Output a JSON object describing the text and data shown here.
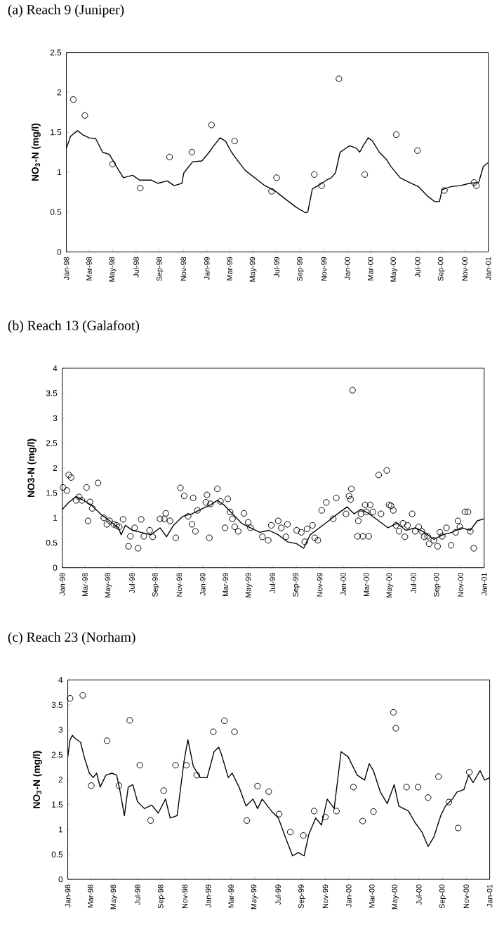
{
  "chart_data": [
    {
      "type": "line",
      "title": "(a) Reach 9 (Juniper)",
      "ylabel": "NO$_{3}$-N (mg/l)",
      "xlim": [
        "1998-01-01",
        "2001-01-01"
      ],
      "ylim": [
        0,
        2.5
      ],
      "yticks": [
        0,
        0.5,
        1,
        1.5,
        2,
        2.5
      ],
      "xticks": [
        {
          "value": "1998-01-01",
          "label": "Jan-98"
        },
        {
          "value": "1998-03-01",
          "label": "Mar-98"
        },
        {
          "value": "1998-05-01",
          "label": "May-98"
        },
        {
          "value": "1998-07-01",
          "label": "Jul-98"
        },
        {
          "value": "1998-09-01",
          "label": "Sep-98"
        },
        {
          "value": "1998-11-01",
          "label": "Nov-98"
        },
        {
          "value": "1999-01-01",
          "label": "Jan-99"
        },
        {
          "value": "1999-03-01",
          "label": "Mar-99"
        },
        {
          "value": "1999-05-01",
          "label": "May-99"
        },
        {
          "value": "1999-07-01",
          "label": "Jul-99"
        },
        {
          "value": "1999-09-01",
          "label": "Sep-99"
        },
        {
          "value": "1999-11-01",
          "label": "Nov-99"
        },
        {
          "value": "2000-01-01",
          "label": "Jan-00"
        },
        {
          "value": "2000-03-01",
          "label": "Mar-00"
        },
        {
          "value": "2000-05-01",
          "label": "May-00"
        },
        {
          "value": "2000-07-01",
          "label": "Jul-00"
        },
        {
          "value": "2000-09-01",
          "label": "Sep-00"
        },
        {
          "value": "2000-11-01",
          "label": "Nov-00"
        },
        {
          "value": "2001-01-01",
          "label": "Jan-01"
        }
      ],
      "series": [
        {
          "type": "line",
          "color": "#000000",
          "x": [
            "1998-01-01",
            "1998-01-12",
            "1998-01-30",
            "1998-02-12",
            "1998-03-01",
            "1998-03-18",
            "1998-04-05",
            "1998-04-23",
            "1998-05-11",
            "1998-05-29",
            "1998-06-22",
            "1998-07-10",
            "1998-08-09",
            "1998-08-27",
            "1998-09-20",
            "1998-10-08",
            "1998-10-28",
            "1998-11-02",
            "1998-11-25",
            "1998-12-19",
            "1999-01-07",
            "1999-01-19",
            "1999-02-04",
            "1999-02-18",
            "1999-03-06",
            "1999-03-24",
            "1999-04-11",
            "1999-05-05",
            "1999-05-29",
            "1999-06-28",
            "1999-07-22",
            "1999-08-21",
            "1999-09-14",
            "1999-09-20",
            "1999-10-02",
            "1999-10-20",
            "1999-11-08",
            "1999-11-20",
            "1999-12-01",
            "1999-12-13",
            "2000-01-07",
            "2000-01-24",
            "2000-02-02",
            "2000-02-11",
            "2000-02-24",
            "2000-03-06",
            "2000-03-24",
            "2000-04-11",
            "2000-04-23",
            "2000-05-17",
            "2000-06-10",
            "2000-07-03",
            "2000-07-27",
            "2000-08-15",
            "2000-08-27",
            "2000-09-03",
            "2000-09-27",
            "2000-10-20",
            "2000-11-14",
            "2000-12-07",
            "2000-12-19",
            "2001-01-01"
          ],
          "values": [
            1.3,
            1.45,
            1.52,
            1.47,
            1.43,
            1.42,
            1.25,
            1.22,
            1.07,
            0.93,
            0.96,
            0.9,
            0.9,
            0.86,
            0.89,
            0.83,
            0.86,
            0.99,
            1.13,
            1.14,
            1.25,
            1.33,
            1.43,
            1.39,
            1.25,
            1.13,
            1.02,
            0.93,
            0.84,
            0.76,
            0.67,
            0.56,
            0.49,
            0.5,
            0.79,
            0.84,
            0.9,
            0.93,
            0.99,
            1.25,
            1.33,
            1.3,
            1.25,
            1.33,
            1.43,
            1.39,
            1.25,
            1.16,
            1.07,
            0.93,
            0.87,
            0.82,
            0.7,
            0.63,
            0.63,
            0.78,
            0.82,
            0.83,
            0.86,
            0.87,
            1.07,
            1.12
          ]
        },
        {
          "type": "scatter",
          "marker": "circle",
          "color": "#000000",
          "x": [
            "1998-01-19",
            "1998-02-18",
            "1998-05-01",
            "1998-07-12",
            "1998-09-26",
            "1998-11-23",
            "1999-01-13",
            "1999-03-14",
            "1999-06-18",
            "1999-07-01",
            "1999-10-07",
            "1999-10-26",
            "1999-12-10",
            "2000-02-15",
            "2000-05-07",
            "2000-07-01",
            "2000-09-09",
            "2000-11-25",
            "2000-12-01"
          ],
          "values": [
            1.91,
            1.71,
            1.1,
            0.8,
            1.19,
            1.25,
            1.59,
            1.39,
            0.76,
            0.93,
            0.97,
            0.83,
            2.17,
            0.97,
            1.47,
            1.27,
            0.77,
            0.87,
            0.83
          ]
        }
      ]
    },
    {
      "type": "line",
      "title": "(b) Reach 13 (Galafoot)",
      "ylabel": "NO3-N (mg/l)",
      "xlim": [
        "1998-01-01",
        "2001-01-01"
      ],
      "ylim": [
        0,
        4
      ],
      "yticks": [
        0,
        0.5,
        1,
        1.5,
        2,
        2.5,
        3,
        3.5,
        4
      ],
      "xticks": [
        {
          "value": "1998-01-01",
          "label": "Jan-98"
        },
        {
          "value": "1998-03-01",
          "label": "Mar-98"
        },
        {
          "value": "1998-05-01",
          "label": "May-98"
        },
        {
          "value": "1998-07-01",
          "label": "Jul-98"
        },
        {
          "value": "1998-09-01",
          "label": "Sep-98"
        },
        {
          "value": "1998-11-01",
          "label": "Nov-98"
        },
        {
          "value": "1999-01-01",
          "label": "Jan-99"
        },
        {
          "value": "1999-03-01",
          "label": "Mar-99"
        },
        {
          "value": "1999-05-01",
          "label": "May-99"
        },
        {
          "value": "1999-07-01",
          "label": "Jul-99"
        },
        {
          "value": "1999-09-01",
          "label": "Sep-99"
        },
        {
          "value": "1999-11-01",
          "label": "Nov-99"
        },
        {
          "value": "2000-01-01",
          "label": "Jan-00"
        },
        {
          "value": "2000-03-01",
          "label": "Mar-00"
        },
        {
          "value": "2000-05-01",
          "label": "May-00"
        },
        {
          "value": "2000-07-01",
          "label": "Jul-00"
        },
        {
          "value": "2000-09-01",
          "label": "Sep-00"
        },
        {
          "value": "2000-11-01",
          "label": "Nov-00"
        },
        {
          "value": "2001-01-01",
          "label": "Jan-01"
        }
      ],
      "series": [
        {
          "type": "line",
          "color": "#000000",
          "x": [
            "1998-01-01",
            "1998-01-18",
            "1998-02-06",
            "1998-02-23",
            "1998-03-17",
            "1998-04-10",
            "1998-05-04",
            "1998-05-27",
            "1998-06-03",
            "1998-06-14",
            "1998-07-02",
            "1998-07-25",
            "1998-08-19",
            "1998-09-12",
            "1998-09-29",
            "1998-10-17",
            "1998-11-10",
            "1998-12-04",
            "1998-12-27",
            "1999-01-21",
            "1999-02-08",
            "1999-02-25",
            "1999-03-19",
            "1999-04-12",
            "1999-05-05",
            "1999-05-29",
            "1999-06-22",
            "1999-07-16",
            "1999-08-09",
            "1999-09-02",
            "1999-09-20",
            "1999-10-07",
            "1999-10-31",
            "1999-11-24",
            "1999-12-17",
            "2000-01-11",
            "2000-01-29",
            "2000-02-16",
            "2000-03-09",
            "2000-04-02",
            "2000-04-26",
            "2000-05-19",
            "2000-06-12",
            "2000-07-06",
            "2000-07-30",
            "2000-08-23",
            "2000-09-16",
            "2000-10-09",
            "2000-11-03",
            "2000-11-26",
            "2000-12-14",
            "2001-01-01"
          ],
          "values": [
            1.17,
            1.31,
            1.43,
            1.36,
            1.26,
            1.08,
            0.94,
            0.8,
            0.66,
            0.85,
            0.75,
            0.71,
            0.66,
            0.8,
            0.62,
            0.85,
            1.03,
            1.08,
            1.17,
            1.26,
            1.35,
            1.26,
            1.08,
            0.89,
            0.8,
            0.71,
            0.75,
            0.66,
            0.52,
            0.48,
            0.39,
            0.66,
            0.8,
            0.94,
            1.08,
            1.22,
            1.08,
            1.17,
            1.08,
            0.94,
            0.8,
            0.89,
            0.75,
            0.8,
            0.71,
            0.57,
            0.66,
            0.71,
            0.8,
            0.75,
            0.94,
            0.98
          ]
        },
        {
          "type": "scatter",
          "marker": "circle",
          "color": "#000000",
          "x": [
            "1998-01-03",
            "1998-01-13",
            "1998-01-18",
            "1998-01-24",
            "1998-02-06",
            "1998-02-14",
            "1998-02-21",
            "1998-03-05",
            "1998-03-09",
            "1998-03-14",
            "1998-03-20",
            "1998-04-04",
            "1998-04-19",
            "1998-04-27",
            "1998-05-04",
            "1998-05-15",
            "1998-05-22",
            "1998-05-29",
            "1998-06-08",
            "1998-06-22",
            "1998-06-27",
            "1998-07-08",
            "1998-07-17",
            "1998-07-25",
            "1998-08-01",
            "1998-08-16",
            "1998-08-24",
            "1998-09-12",
            "1998-09-23",
            "1998-09-27",
            "1998-10-08",
            "1998-10-23",
            "1998-11-04",
            "1998-11-14",
            "1998-11-24",
            "1998-12-04",
            "1998-12-07",
            "1998-12-13",
            "1998-12-18",
            "1999-01-09",
            "1999-01-12",
            "1999-01-18",
            "1999-01-21",
            "1999-02-08",
            "1999-02-16",
            "1999-02-28",
            "1999-03-07",
            "1999-03-13",
            "1999-03-19",
            "1999-03-25",
            "1999-04-03",
            "1999-04-18",
            "1999-04-29",
            "1999-05-05",
            "1999-06-05",
            "1999-06-20",
            "1999-06-28",
            "1999-07-16",
            "1999-07-24",
            "1999-08-05",
            "1999-08-09",
            "1999-09-02",
            "1999-09-14",
            "1999-09-23",
            "1999-09-29",
            "1999-10-13",
            "1999-10-19",
            "1999-10-27",
            "1999-11-06",
            "1999-11-18",
            "1999-12-06",
            "1999-12-14",
            "2000-01-08",
            "2000-01-16",
            "2000-01-20",
            "2000-01-22",
            "2000-01-25",
            "2000-02-07",
            "2000-02-09",
            "2000-02-16",
            "2000-02-21",
            "2000-02-27",
            "2000-03-01",
            "2000-03-07",
            "2000-03-11",
            "2000-03-18",
            "2000-04-02",
            "2000-04-08",
            "2000-04-23",
            "2000-04-29",
            "2000-05-04",
            "2000-05-10",
            "2000-05-17",
            "2000-05-25",
            "2000-06-04",
            "2000-06-09",
            "2000-06-16",
            "2000-06-28",
            "2000-07-06",
            "2000-07-15",
            "2000-07-23",
            "2000-07-29",
            "2000-08-07",
            "2000-08-11",
            "2000-08-23",
            "2000-09-02",
            "2000-09-08",
            "2000-09-14",
            "2000-09-25",
            "2000-10-07",
            "2000-10-19",
            "2000-10-25",
            "2000-10-30",
            "2000-11-12",
            "2000-11-20",
            "2000-11-26",
            "2000-12-05"
          ],
          "values": [
            1.61,
            1.55,
            1.86,
            1.81,
            1.35,
            1.42,
            1.35,
            1.61,
            0.94,
            1.32,
            1.19,
            1.7,
            1.0,
            0.87,
            0.94,
            0.87,
            0.85,
            0.82,
            0.97,
            0.43,
            0.63,
            0.8,
            0.39,
            0.97,
            0.63,
            0.75,
            0.62,
            0.98,
            0.98,
            1.09,
            0.94,
            0.6,
            1.6,
            1.44,
            1.03,
            0.87,
            1.4,
            0.73,
            1.15,
            1.31,
            1.46,
            0.6,
            1.28,
            1.58,
            1.33,
            0.8,
            1.38,
            1.12,
            0.98,
            0.82,
            0.73,
            1.09,
            0.91,
            0.8,
            0.62,
            0.55,
            0.85,
            0.94,
            0.8,
            0.62,
            0.87,
            0.75,
            0.71,
            0.52,
            0.78,
            0.85,
            0.6,
            0.55,
            1.15,
            1.31,
            0.98,
            1.4,
            1.08,
            1.44,
            1.37,
            1.58,
            3.56,
            0.63,
            0.94,
            1.08,
            0.63,
            1.26,
            1.12,
            0.63,
            1.26,
            1.12,
            1.86,
            1.08,
            1.95,
            1.26,
            1.24,
            1.15,
            0.85,
            0.73,
            0.89,
            0.62,
            0.85,
            1.08,
            0.73,
            0.82,
            0.73,
            0.62,
            0.63,
            0.48,
            0.55,
            0.43,
            0.71,
            0.63,
            0.8,
            0.45,
            0.71,
            0.94,
            0.82,
            1.12,
            1.12,
            0.73,
            0.39
          ]
        }
      ]
    },
    {
      "type": "line",
      "title": "(c) Reach 23 (Norham)",
      "ylabel": "NO$_{3}$-N (mg/l)",
      "xlim": [
        "1998-01-01",
        "2001-01-01"
      ],
      "ylim": [
        0,
        4
      ],
      "yticks": [
        0,
        0.5,
        1,
        1.5,
        2,
        2.5,
        3,
        3.5,
        4
      ],
      "xticks": [
        {
          "value": "1998-01-01",
          "label": "Jan-98"
        },
        {
          "value": "1998-03-01",
          "label": "Mar-98"
        },
        {
          "value": "1998-05-01",
          "label": "May-98"
        },
        {
          "value": "1998-07-01",
          "label": "Jul-98"
        },
        {
          "value": "1998-09-01",
          "label": "Sep-98"
        },
        {
          "value": "1998-11-01",
          "label": "Nov-98"
        },
        {
          "value": "1999-01-01",
          "label": "Jan-99"
        },
        {
          "value": "1999-03-01",
          "label": "Mar-99"
        },
        {
          "value": "1999-05-01",
          "label": "May-99"
        },
        {
          "value": "1999-07-01",
          "label": "Jul-99"
        },
        {
          "value": "1999-09-01",
          "label": "Sep-99"
        },
        {
          "value": "1999-11-01",
          "label": "Nov-99"
        },
        {
          "value": "2000-01-01",
          "label": "Jan-00"
        },
        {
          "value": "2000-03-01",
          "label": "Mar-00"
        },
        {
          "value": "2000-05-01",
          "label": "May-00"
        },
        {
          "value": "2000-07-01",
          "label": "Jul-00"
        },
        {
          "value": "2000-09-01",
          "label": "Sep-00"
        },
        {
          "value": "2000-11-01",
          "label": "Nov-00"
        },
        {
          "value": "2001-01-01",
          "label": "Jan-01"
        }
      ],
      "series": [
        {
          "type": "line",
          "color": "#000000",
          "x": [
            "1998-01-01",
            "1998-01-07",
            "1998-01-13",
            "1998-01-21",
            "1998-02-03",
            "1998-02-14",
            "1998-02-26",
            "1998-03-08",
            "1998-03-17",
            "1998-03-26",
            "1998-04-10",
            "1998-04-26",
            "1998-05-08",
            "1998-05-16",
            "1998-05-28",
            "1998-06-07",
            "1998-06-19",
            "1998-07-01",
            "1998-07-19",
            "1998-08-07",
            "1998-08-24",
            "1998-09-12",
            "1998-09-24",
            "1998-10-12",
            "1998-10-30",
            "1998-11-09",
            "1998-11-23",
            "1998-12-11",
            "1998-12-29",
            "1999-01-16",
            "1999-01-28",
            "1999-02-04",
            "1999-02-22",
            "1999-03-04",
            "1999-03-22",
            "1999-04-09",
            "1999-04-27",
            "1999-05-09",
            "1999-05-21",
            "1999-06-14",
            "1999-07-02",
            "1999-07-20",
            "1999-08-08",
            "1999-08-23",
            "1999-09-07",
            "1999-09-19",
            "1999-10-07",
            "1999-10-22",
            "1999-11-06",
            "1999-11-24",
            "1999-12-12",
            "1999-12-30",
            "2000-01-23",
            "2000-02-11",
            "2000-02-23",
            "2000-03-05",
            "2000-03-23",
            "2000-04-10",
            "2000-04-28",
            "2000-05-10",
            "2000-06-04",
            "2000-06-21",
            "2000-07-09",
            "2000-07-25",
            "2000-08-09",
            "2000-08-27",
            "2000-09-08",
            "2000-09-26",
            "2000-10-08",
            "2000-10-26",
            "2000-11-07",
            "2000-11-19",
            "2000-12-07",
            "2000-12-19",
            "2001-01-01"
          ],
          "values": [
            2.46,
            2.8,
            2.89,
            2.82,
            2.75,
            2.42,
            2.13,
            2.04,
            2.13,
            1.85,
            2.09,
            2.13,
            2.09,
            1.8,
            1.28,
            1.85,
            1.9,
            1.56,
            1.42,
            1.49,
            1.33,
            1.61,
            1.23,
            1.28,
            2.37,
            2.8,
            2.27,
            2.04,
            2.04,
            2.56,
            2.65,
            2.51,
            2.04,
            2.13,
            1.85,
            1.47,
            1.61,
            1.42,
            1.61,
            1.37,
            1.23,
            0.85,
            0.47,
            0.54,
            0.47,
            0.9,
            1.23,
            1.09,
            1.61,
            1.42,
            2.56,
            2.46,
            2.09,
            1.99,
            2.32,
            2.18,
            1.75,
            1.52,
            1.9,
            1.47,
            1.37,
            1.14,
            0.95,
            0.66,
            0.85,
            1.28,
            1.47,
            1.61,
            1.75,
            1.8,
            2.09,
            1.94,
            2.18,
            1.99,
            2.04
          ]
        },
        {
          "type": "scatter",
          "marker": "circle",
          "color": "#000000",
          "x": [
            "1998-01-07",
            "1998-02-09",
            "1998-03-03",
            "1998-04-13",
            "1998-05-14",
            "1998-06-11",
            "1998-07-07",
            "1998-08-04",
            "1998-09-07",
            "1998-10-08",
            "1998-11-05",
            "1998-12-02",
            "1999-01-14",
            "1999-02-12",
            "1999-03-10",
            "1999-04-11",
            "1999-05-09",
            "1999-06-07",
            "1999-07-04",
            "1999-08-02",
            "1999-09-05",
            "1999-10-03",
            "1999-11-01",
            "1999-11-30",
            "2000-01-13",
            "2000-02-06",
            "2000-03-05",
            "2000-04-26",
            "2000-05-02",
            "2000-05-30",
            "2000-06-29",
            "2000-07-25",
            "2000-08-21",
            "2000-09-17",
            "2000-10-11",
            "2000-11-09"
          ],
          "values": [
            3.63,
            3.69,
            1.88,
            2.78,
            1.88,
            3.19,
            2.29,
            1.18,
            1.78,
            2.29,
            2.29,
            2.09,
            2.96,
            3.18,
            2.96,
            1.18,
            1.87,
            1.76,
            1.31,
            0.95,
            0.88,
            1.37,
            1.25,
            1.37,
            1.85,
            1.17,
            1.36,
            3.35,
            3.03,
            1.85,
            1.85,
            1.64,
            2.06,
            1.55,
            1.03,
            2.15
          ]
        }
      ]
    }
  ]
}
